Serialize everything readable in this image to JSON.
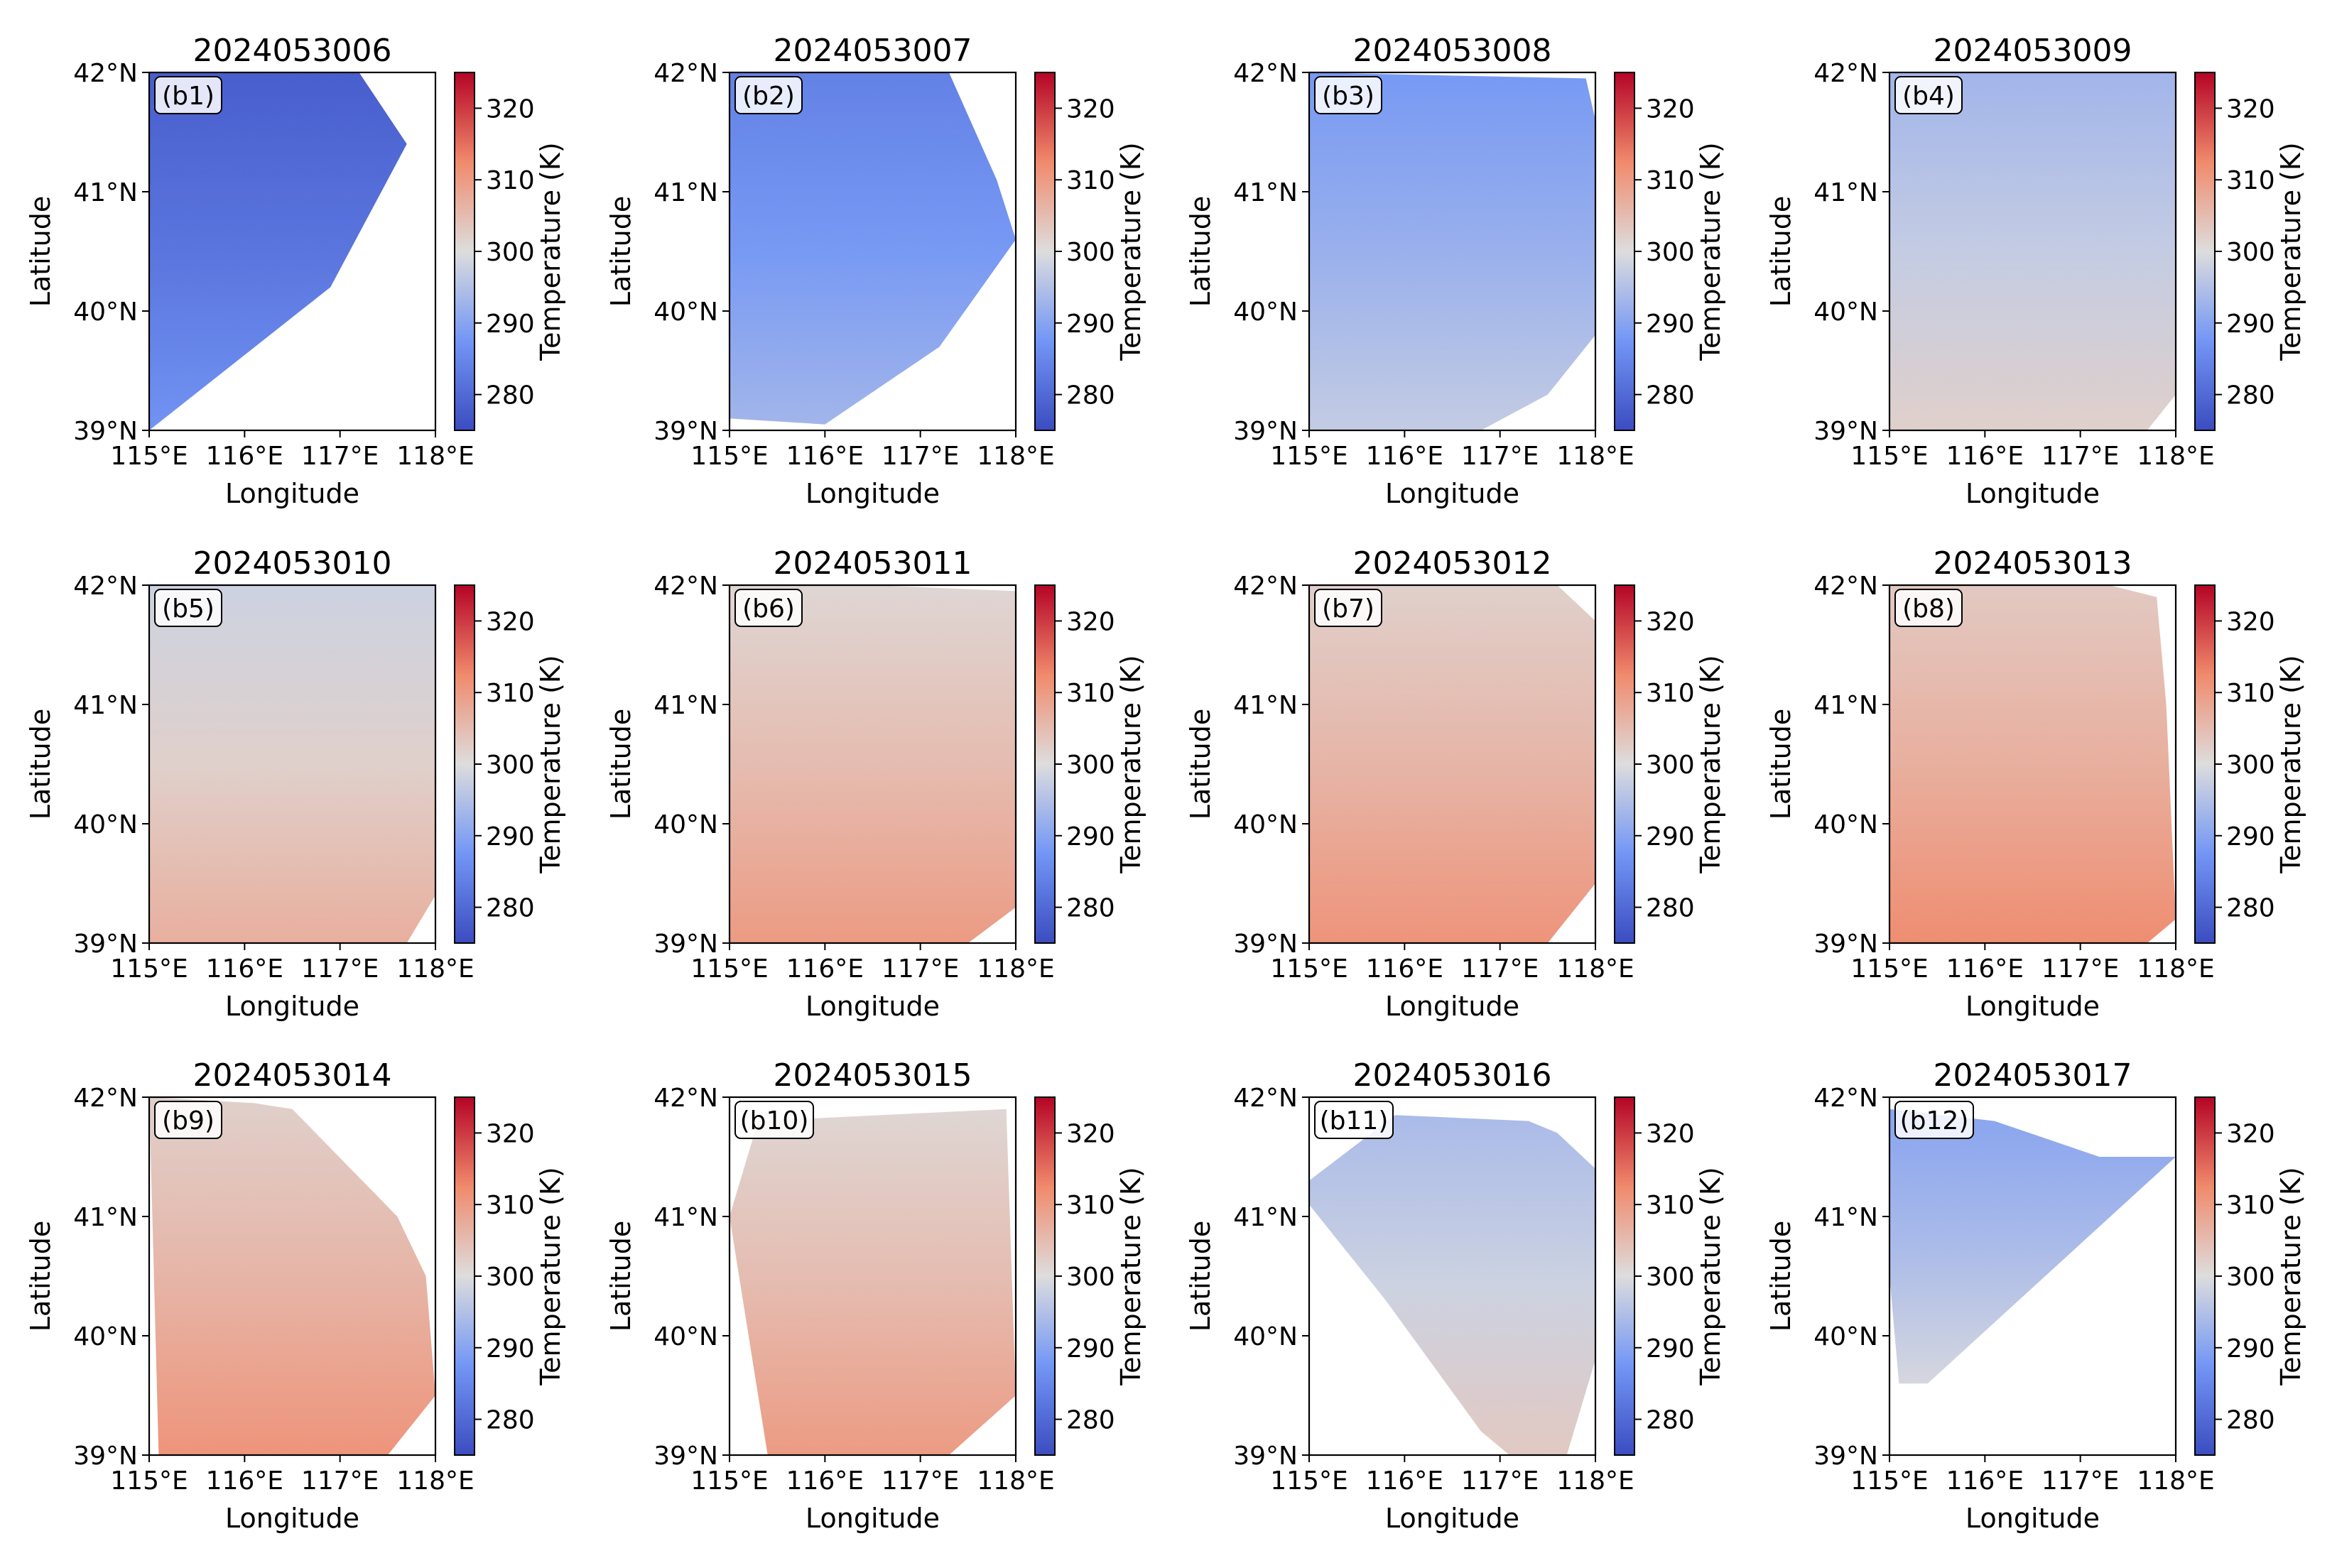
{
  "chart_data": {
    "type": "heatmap",
    "colormap": "coolwarm",
    "colorbar": {
      "label": "Temperature (K)",
      "range": [
        275,
        325
      ],
      "ticks": [
        280,
        290,
        300,
        310,
        320
      ]
    },
    "x_ticks": [
      "115°E",
      "116°E",
      "117°E",
      "118°E"
    ],
    "y_ticks": [
      "42°N",
      "41°N",
      "40°N",
      "39°N"
    ],
    "xlabel": "Longitude",
    "ylabel": "Latitude",
    "xlim": [
      115,
      118
    ],
    "ylim": [
      39,
      42
    ],
    "panels": [
      {
        "label": "(b1)",
        "title": "2024053006",
        "mean_temperature": 282,
        "coverage": [
          [
            115,
            42
          ],
          [
            117.2,
            42
          ],
          [
            117.7,
            41.4
          ],
          [
            116.9,
            40.2
          ],
          [
            115,
            39
          ]
        ]
      },
      {
        "label": "(b2)",
        "title": "2024053007",
        "mean_temperature": 288,
        "coverage": [
          [
            115,
            42
          ],
          [
            117.3,
            42
          ],
          [
            117.8,
            41.1
          ],
          [
            118,
            40.6
          ],
          [
            117.2,
            39.7
          ],
          [
            116,
            39.05
          ],
          [
            115,
            39.1
          ]
        ]
      },
      {
        "label": "(b3)",
        "title": "2024053008",
        "mean_temperature": 292,
        "coverage": [
          [
            115,
            42
          ],
          [
            117.9,
            41.95
          ],
          [
            118,
            41.6
          ],
          [
            118,
            39.8
          ],
          [
            117.5,
            39.3
          ],
          [
            116.8,
            39
          ],
          [
            115,
            39
          ]
        ]
      },
      {
        "label": "(b4)",
        "title": "2024053009",
        "mean_temperature": 297,
        "coverage": [
          [
            115,
            42
          ],
          [
            118,
            42
          ],
          [
            118,
            39.3
          ],
          [
            117.7,
            39
          ],
          [
            115,
            39
          ]
        ]
      },
      {
        "label": "(b5)",
        "title": "2024053010",
        "mean_temperature": 302,
        "coverage": [
          [
            115,
            42
          ],
          [
            118,
            42
          ],
          [
            118,
            39.4
          ],
          [
            117.7,
            39
          ],
          [
            115,
            39
          ]
        ]
      },
      {
        "label": "(b6)",
        "title": "2024053011",
        "mean_temperature": 305,
        "coverage": [
          [
            115,
            42
          ],
          [
            116.5,
            42
          ],
          [
            118,
            41.95
          ],
          [
            118,
            39.3
          ],
          [
            117.5,
            39
          ],
          [
            115,
            39
          ]
        ]
      },
      {
        "label": "(b7)",
        "title": "2024053012",
        "mean_temperature": 306,
        "coverage": [
          [
            115,
            42
          ],
          [
            117.6,
            42
          ],
          [
            118,
            41.7
          ],
          [
            118,
            39.5
          ],
          [
            117.5,
            39
          ],
          [
            115,
            39
          ]
        ]
      },
      {
        "label": "(b8)",
        "title": "2024053013",
        "mean_temperature": 307,
        "coverage": [
          [
            115,
            42
          ],
          [
            117.3,
            42
          ],
          [
            117.8,
            41.9
          ],
          [
            117.9,
            41
          ],
          [
            118,
            39.2
          ],
          [
            117.7,
            39
          ],
          [
            115,
            39
          ]
        ]
      },
      {
        "label": "(b9)",
        "title": "2024053014",
        "mean_temperature": 306,
        "coverage": [
          [
            115,
            42
          ],
          [
            116.1,
            41.95
          ],
          [
            116.5,
            41.9
          ],
          [
            117.6,
            41
          ],
          [
            117.9,
            40.5
          ],
          [
            118,
            39.5
          ],
          [
            117.5,
            39
          ],
          [
            115.1,
            39
          ]
        ]
      },
      {
        "label": "(b10)",
        "title": "2024053015",
        "mean_temperature": 305,
        "coverage": [
          [
            115.3,
            41.8
          ],
          [
            117.9,
            41.9
          ],
          [
            118,
            39.5
          ],
          [
            117.3,
            39
          ],
          [
            115.4,
            39
          ],
          [
            115,
            41
          ]
        ]
      },
      {
        "label": "(b11)",
        "title": "2024053016",
        "mean_temperature": 298,
        "coverage": [
          [
            115,
            41.3
          ],
          [
            115.9,
            41.85
          ],
          [
            117.3,
            41.8
          ],
          [
            117.6,
            41.7
          ],
          [
            118,
            41.4
          ],
          [
            118,
            39.8
          ],
          [
            117.7,
            39
          ],
          [
            117.1,
            39
          ],
          [
            116.8,
            39.2
          ],
          [
            115.8,
            40.3
          ],
          [
            115,
            41.1
          ]
        ]
      },
      {
        "label": "(b12)",
        "title": "2024053017",
        "mean_temperature": 294,
        "coverage": [
          [
            115,
            41.9
          ],
          [
            116.1,
            41.8
          ],
          [
            117.2,
            41.5
          ],
          [
            118,
            41.5
          ],
          [
            115.4,
            39.6
          ],
          [
            115.1,
            39.6
          ],
          [
            115,
            40.5
          ]
        ]
      }
    ]
  }
}
